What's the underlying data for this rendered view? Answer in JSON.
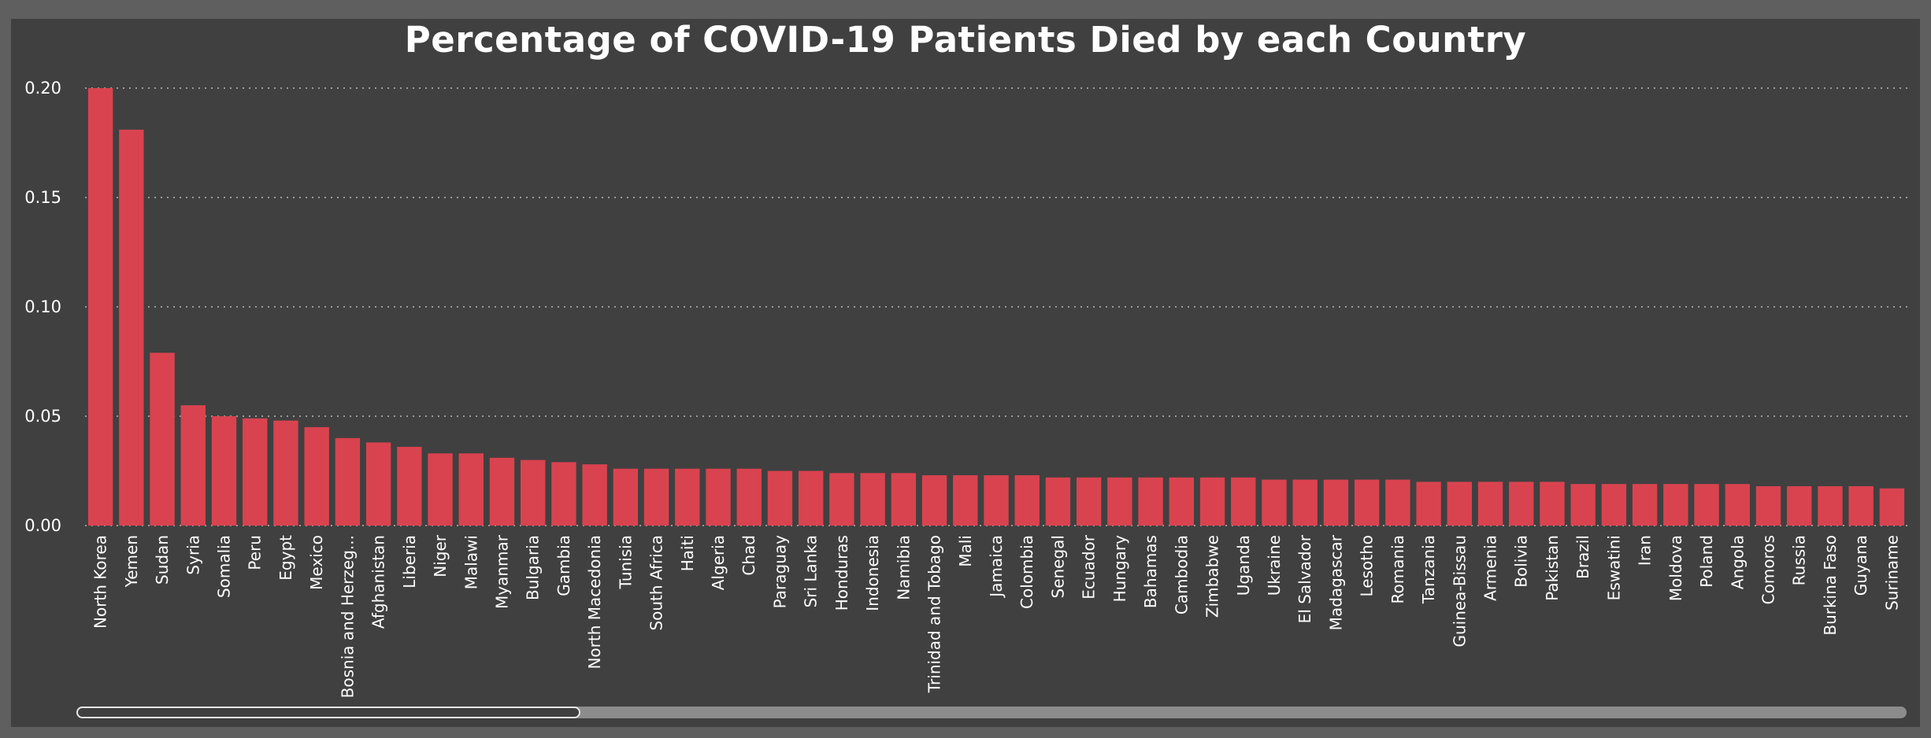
{
  "chart_data": {
    "type": "bar",
    "title": "Percentage of COVID-19 Patients Died by each Country",
    "xlabel": "",
    "ylabel": "",
    "ylim": [
      0,
      0.2
    ],
    "yticks": [
      "0.00",
      "0.05",
      "0.10",
      "0.15",
      "0.20"
    ],
    "grid": true,
    "bar_color": "#d9434f",
    "categories": [
      "North Korea",
      "Yemen",
      "Sudan",
      "Syria",
      "Somalia",
      "Peru",
      "Egypt",
      "Mexico",
      "Bosnia and Herzeg...",
      "Afghanistan",
      "Liberia",
      "Niger",
      "Malawi",
      "Myanmar",
      "Bulgaria",
      "Gambia",
      "North Macedonia",
      "Tunisia",
      "South Africa",
      "Haiti",
      "Algeria",
      "Chad",
      "Paraguay",
      "Sri Lanka",
      "Honduras",
      "Indonesia",
      "Namibia",
      "Trinidad and Tobago",
      "Mali",
      "Jamaica",
      "Colombia",
      "Senegal",
      "Ecuador",
      "Hungary",
      "Bahamas",
      "Cambodia",
      "Zimbabwe",
      "Uganda",
      "Ukraine",
      "El Salvador",
      "Madagascar",
      "Lesotho",
      "Romania",
      "Tanzania",
      "Guinea-Bissau",
      "Armenia",
      "Bolivia",
      "Pakistan",
      "Brazil",
      "Eswatini",
      "Iran",
      "Moldova",
      "Poland",
      "Angola",
      "Comoros",
      "Russia",
      "Burkina Faso",
      "Guyana",
      "Suriname"
    ],
    "values": [
      0.2,
      0.181,
      0.079,
      0.055,
      0.05,
      0.049,
      0.048,
      0.045,
      0.04,
      0.038,
      0.036,
      0.033,
      0.033,
      0.031,
      0.03,
      0.029,
      0.028,
      0.026,
      0.026,
      0.026,
      0.026,
      0.026,
      0.025,
      0.025,
      0.024,
      0.024,
      0.024,
      0.023,
      0.023,
      0.023,
      0.023,
      0.022,
      0.022,
      0.022,
      0.022,
      0.022,
      0.022,
      0.022,
      0.021,
      0.021,
      0.021,
      0.021,
      0.021,
      0.02,
      0.02,
      0.02,
      0.02,
      0.02,
      0.019,
      0.019,
      0.019,
      0.019,
      0.019,
      0.019,
      0.018,
      0.018,
      0.018,
      0.018,
      0.017
    ]
  },
  "scrollbar": {
    "thumb_fraction_start": 0.0,
    "thumb_fraction_size": 0.275
  }
}
